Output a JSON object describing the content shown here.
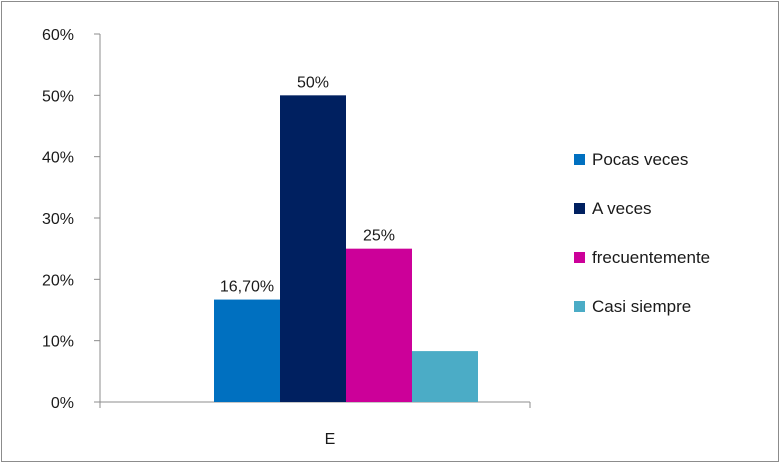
{
  "chart_data": {
    "type": "bar",
    "categories": [
      "E"
    ],
    "series": [
      {
        "name": "Pocas veces",
        "values": [
          16.7
        ],
        "color": "#0070C0",
        "label": "16,70%"
      },
      {
        "name": "A veces",
        "values": [
          50
        ],
        "color": "#002060",
        "label": "50%"
      },
      {
        "name": "frecuentemente",
        "values": [
          25
        ],
        "color": "#CC0099",
        "label": "25%"
      },
      {
        "name": "Casi siempre",
        "values": [
          8.3
        ],
        "color": "#4BACC6",
        "label": ""
      }
    ],
    "ylim": [
      0,
      60
    ],
    "yticks": [
      0,
      10,
      20,
      30,
      40,
      50,
      60
    ],
    "ytick_labels": [
      "0%",
      "10%",
      "20%",
      "30%",
      "40%",
      "50%",
      "60%"
    ],
    "grid": false,
    "legend_position": "right"
  }
}
